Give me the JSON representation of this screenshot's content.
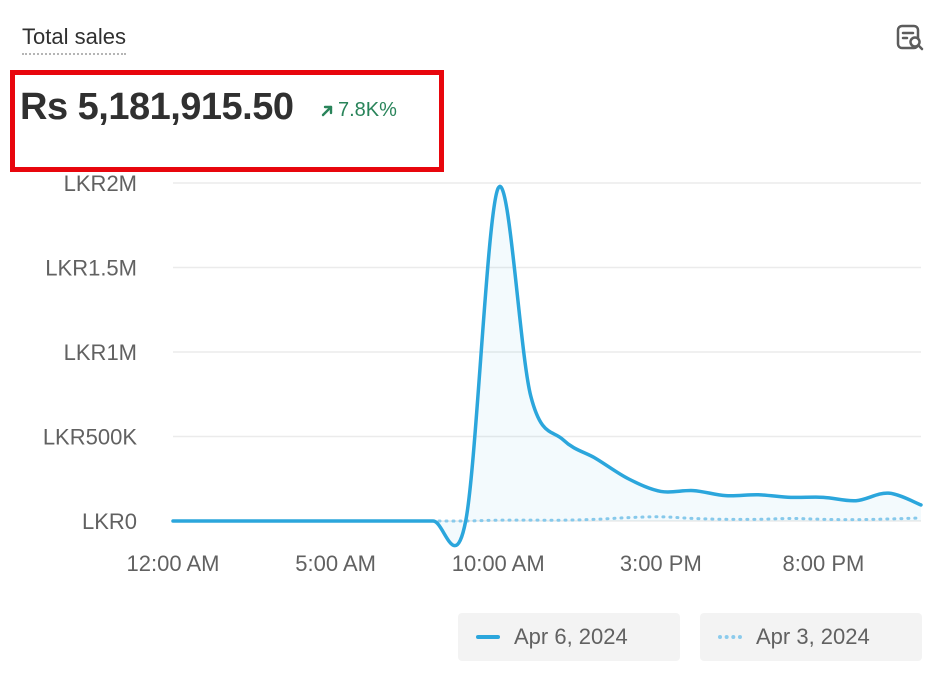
{
  "card": {
    "title": "Total sales",
    "insight_icon": "search-report-icon"
  },
  "metric": {
    "value": "Rs 5,181,915.50",
    "change": "7.8K%",
    "change_icon": "arrow-up-right-icon",
    "change_color": "#29845a"
  },
  "colors": {
    "current": "#2ba6dc",
    "comparison": "#8ccbec",
    "highlight": "#e8060d"
  },
  "chart_data": {
    "type": "line",
    "y_ticks": [
      "LKR0",
      "LKR500K",
      "LKR1M",
      "LKR1.5M",
      "LKR2M"
    ],
    "y_tick_values": [
      0,
      500000,
      1000000,
      1500000,
      2000000
    ],
    "x_ticks": [
      "12:00 AM",
      "5:00 AM",
      "10:00 AM",
      "3:00 PM",
      "8:00 PM"
    ],
    "x_tick_hours": [
      0,
      5,
      10,
      15,
      20
    ],
    "xlim": [
      0,
      23
    ],
    "ylim": [
      0,
      2000000
    ],
    "grid": true,
    "legend_position": "bottom-right",
    "series": [
      {
        "name": "Apr 6, 2024",
        "style": "solid",
        "x": [
          0,
          1,
          2,
          3,
          4,
          5,
          6,
          7,
          8,
          9,
          10,
          11,
          12,
          13,
          14,
          15,
          16,
          17,
          18,
          19,
          20,
          21,
          22,
          23
        ],
        "values": [
          0,
          0,
          0,
          0,
          0,
          0,
          0,
          0,
          0,
          0,
          1970000,
          740000,
          480000,
          370000,
          250000,
          175000,
          180000,
          150000,
          155000,
          140000,
          140000,
          120000,
          165000,
          95000
        ]
      },
      {
        "name": "Apr 3, 2024",
        "style": "dotted",
        "x": [
          0,
          1,
          2,
          3,
          4,
          5,
          6,
          7,
          8,
          9,
          10,
          11,
          12,
          13,
          14,
          15,
          16,
          17,
          18,
          19,
          20,
          21,
          22,
          23
        ],
        "values": [
          0,
          0,
          0,
          0,
          0,
          0,
          0,
          0,
          0,
          0,
          5000,
          5000,
          5000,
          10000,
          20000,
          25000,
          15000,
          10000,
          10000,
          15000,
          10000,
          8000,
          12000,
          18000
        ]
      }
    ]
  }
}
